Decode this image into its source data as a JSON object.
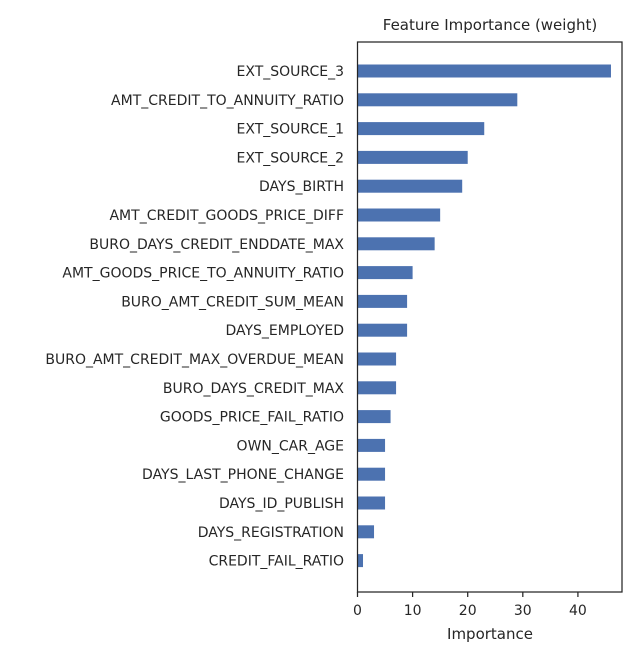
{
  "chart_data": {
    "type": "bar",
    "orientation": "horizontal",
    "title": "Feature Importance (weight)",
    "xlabel": "Importance",
    "ylabel": "",
    "categories": [
      "EXT_SOURCE_3",
      "AMT_CREDIT_TO_ANNUITY_RATIO",
      "EXT_SOURCE_1",
      "EXT_SOURCE_2",
      "DAYS_BIRTH",
      "AMT_CREDIT_GOODS_PRICE_DIFF",
      "BURO_DAYS_CREDIT_ENDDATE_MAX",
      "AMT_GOODS_PRICE_TO_ANNUITY_RATIO",
      "BURO_AMT_CREDIT_SUM_MEAN",
      "DAYS_EMPLOYED",
      "BURO_AMT_CREDIT_MAX_OVERDUE_MEAN",
      "BURO_DAYS_CREDIT_MAX",
      "GOODS_PRICE_FAIL_RATIO",
      "OWN_CAR_AGE",
      "DAYS_LAST_PHONE_CHANGE",
      "DAYS_ID_PUBLISH",
      "DAYS_REGISTRATION",
      "CREDIT_FAIL_RATIO"
    ],
    "values": [
      46,
      29,
      23,
      20,
      19,
      15,
      14,
      10,
      9,
      9,
      7,
      7,
      6,
      5,
      5,
      5,
      3,
      1
    ],
    "xlim": [
      0,
      48
    ],
    "xticks": [
      0,
      10,
      20,
      30,
      40
    ],
    "grid": false,
    "bar_color": "#4c72b0"
  }
}
